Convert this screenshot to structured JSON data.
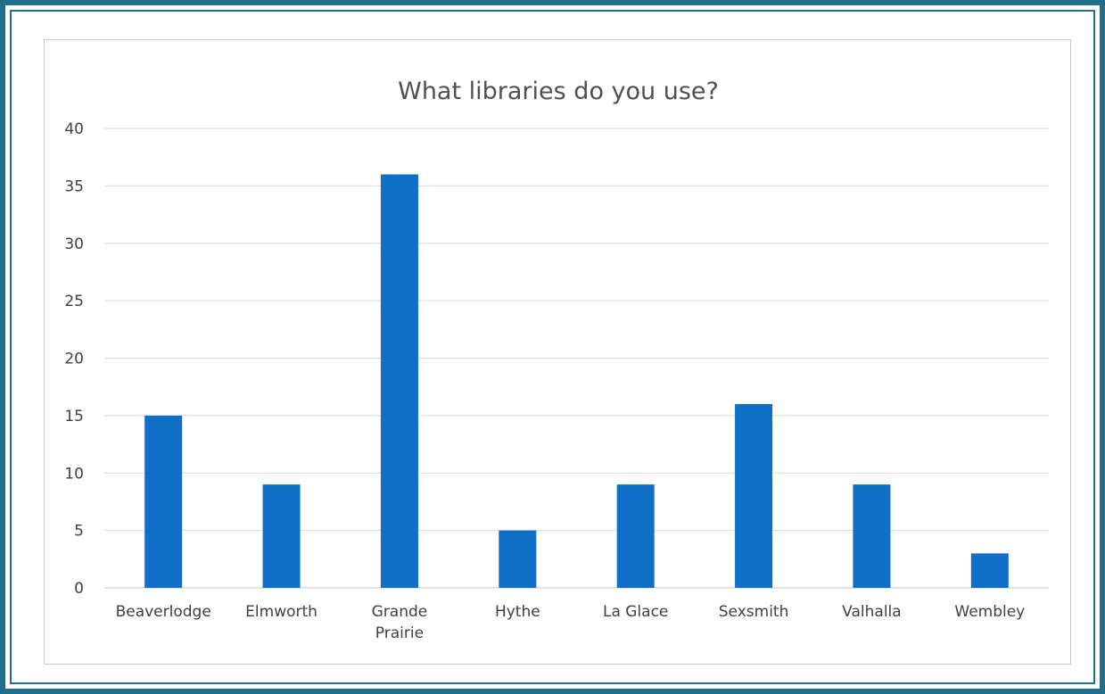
{
  "chart_data": {
    "type": "bar",
    "title": "What libraries do you use?",
    "categories": [
      "Beaverlodge",
      "Elmworth",
      "Grande Prairie",
      "Hythe",
      "La Glace",
      "Sexsmith",
      "Valhalla",
      "Wembley"
    ],
    "category_lines": [
      [
        "Beaverlodge"
      ],
      [
        "Elmworth"
      ],
      [
        "Grande",
        "Prairie"
      ],
      [
        "Hythe"
      ],
      [
        "La Glace"
      ],
      [
        "Sexsmith"
      ],
      [
        "Valhalla"
      ],
      [
        "Wembley"
      ]
    ],
    "values": [
      15,
      9,
      36,
      5,
      9,
      16,
      9,
      3
    ],
    "ylim": [
      0,
      40
    ],
    "yticks": [
      0,
      5,
      10,
      15,
      20,
      25,
      30,
      35,
      40
    ],
    "xlabel": "",
    "ylabel": "",
    "grid": true,
    "legend": "none",
    "bar_color": "#1070c8",
    "grid_color": "#d9d9d9",
    "frame_color": "#1f6e8c"
  }
}
